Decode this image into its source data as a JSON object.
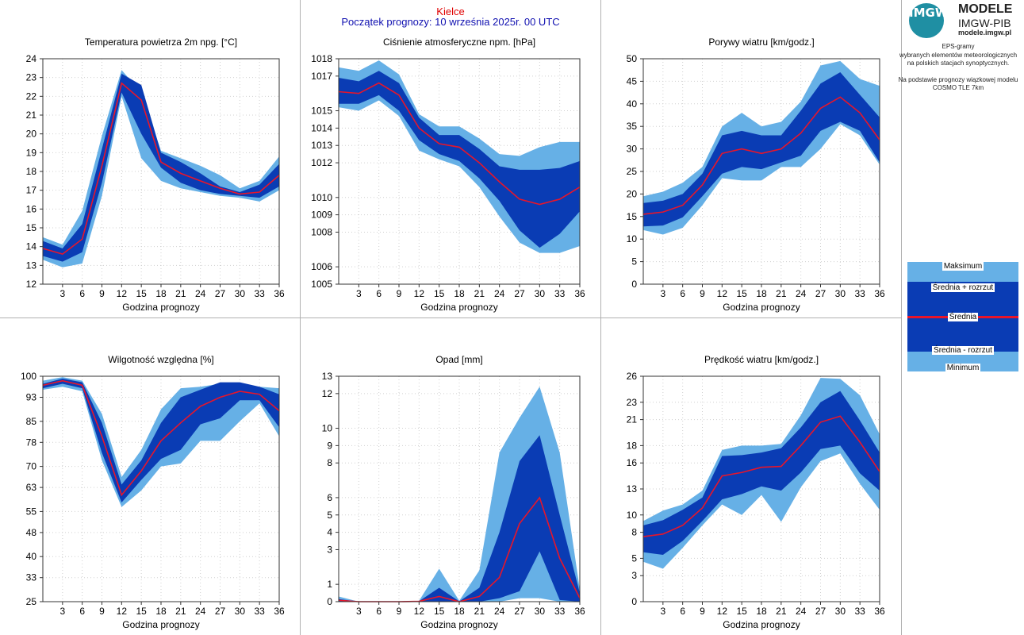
{
  "header": {
    "station": "Kielce",
    "forecast_start": "Początek prognozy: 10 września 2025r. 00 UTC"
  },
  "logo": {
    "emblem": "IMGW",
    "line1": "MODELE",
    "line2": "IMGW-PIB",
    "line3": "modele.imgw.pl"
  },
  "description": {
    "line1": "EPS-gramy",
    "line2": "wybranych elementów meteorologicznych",
    "line3": "na polskich stacjach  synoptycznych.",
    "line4": "Na podstawie prognozy wiązkowej modelu",
    "line5": "COSMO TLE 7km"
  },
  "legend": {
    "max": "Maksimum",
    "mean_plus": "Średnia + rozrzut",
    "mean": "Średnia",
    "mean_minus": "Średnia - rozrzut",
    "min": "Minimum"
  },
  "colors": {
    "outer_band": "#66b0e6",
    "inner_band": "#0a3cb4",
    "mean_line": "#e8152a",
    "grid": "#d0d0d0"
  },
  "chart_data": [
    {
      "type": "area",
      "title": "Temperatura powietrza 2m npg. [°C]",
      "xlabel": "Godzina prognozy",
      "x": [
        0,
        3,
        6,
        9,
        12,
        15,
        18,
        21,
        24,
        27,
        30,
        33,
        36
      ],
      "xticks": [
        "3",
        "6",
        "9",
        "12",
        "15",
        "18",
        "21",
        "24",
        "27",
        "30",
        "33",
        "36"
      ],
      "ylim": [
        12,
        24
      ],
      "yticks": [
        "12",
        "13",
        "14",
        "15",
        "16",
        "17",
        "18",
        "19",
        "20",
        "21",
        "22",
        "23",
        "24"
      ],
      "series": [
        {
          "name": "Maksimum",
          "values": [
            14.5,
            14.1,
            15.9,
            19.9,
            23.4,
            22.2,
            19.1,
            18.7,
            18.3,
            17.8,
            17.1,
            17.5,
            18.8
          ]
        },
        {
          "name": "Średnia + rozrzut",
          "values": [
            14.3,
            13.9,
            15.2,
            19.2,
            23.2,
            22.6,
            19.0,
            18.5,
            17.9,
            17.2,
            16.9,
            17.3,
            18.4
          ]
        },
        {
          "name": "Średnia",
          "values": [
            13.9,
            13.6,
            14.4,
            18.3,
            22.7,
            21.8,
            18.5,
            17.9,
            17.5,
            17.1,
            16.8,
            16.9,
            17.8
          ]
        },
        {
          "name": "Średnia - rozrzut",
          "values": [
            13.5,
            13.2,
            13.7,
            17.4,
            22.2,
            20.0,
            18.2,
            17.4,
            17.0,
            16.8,
            16.7,
            16.6,
            17.2
          ]
        },
        {
          "name": "Minimum",
          "values": [
            13.3,
            12.9,
            13.1,
            16.7,
            22.0,
            18.7,
            17.5,
            17.1,
            16.9,
            16.7,
            16.6,
            16.4,
            17.0
          ]
        }
      ]
    },
    {
      "type": "area",
      "title": "Ciśnienie atmosferyczne npm. [hPa]",
      "xlabel": "Godzina prognozy",
      "x": [
        0,
        3,
        6,
        9,
        12,
        15,
        18,
        21,
        24,
        27,
        30,
        33,
        36
      ],
      "xticks": [
        "3",
        "6",
        "9",
        "12",
        "15",
        "18",
        "21",
        "24",
        "27",
        "30",
        "33",
        "36"
      ],
      "ylim": [
        1005,
        1018
      ],
      "yticks": [
        "1005",
        "1006",
        "1008",
        "1009",
        "1010",
        "1012",
        "1013",
        "1014",
        "1015",
        "1017",
        "1018"
      ],
      "series": [
        {
          "name": "Maksimum",
          "values": [
            1017.5,
            1017.3,
            1017.9,
            1017.1,
            1014.8,
            1014.1,
            1014.1,
            1013.4,
            1012.5,
            1012.4,
            1012.9,
            1013.2,
            1013.2
          ]
        },
        {
          "name": "Średnia + rozrzut",
          "values": [
            1016.9,
            1016.7,
            1017.3,
            1016.6,
            1014.6,
            1013.6,
            1013.6,
            1012.8,
            1011.8,
            1011.6,
            1011.6,
            1011.7,
            1012.1
          ]
        },
        {
          "name": "Średnia",
          "values": [
            1016.1,
            1016.0,
            1016.6,
            1015.9,
            1014.0,
            1013.1,
            1012.9,
            1012.0,
            1010.9,
            1009.9,
            1009.6,
            1009.9,
            1010.6
          ]
        },
        {
          "name": "Średnia - rozrzut",
          "values": [
            1015.4,
            1015.4,
            1015.9,
            1015.0,
            1013.3,
            1012.5,
            1012.1,
            1011.1,
            1009.8,
            1008.1,
            1007.1,
            1007.9,
            1009.2
          ]
        },
        {
          "name": "Minimum",
          "values": [
            1015.2,
            1015.0,
            1015.6,
            1014.7,
            1012.7,
            1012.2,
            1011.8,
            1010.6,
            1008.9,
            1007.4,
            1006.8,
            1006.8,
            1007.2
          ]
        }
      ]
    },
    {
      "type": "area",
      "title": "Porywy wiatru [km/godz.]",
      "xlabel": "Godzina prognozy",
      "x": [
        0,
        3,
        6,
        9,
        12,
        15,
        18,
        21,
        24,
        27,
        30,
        33,
        36
      ],
      "xticks": [
        "3",
        "6",
        "9",
        "12",
        "15",
        "18",
        "21",
        "24",
        "27",
        "30",
        "33",
        "36"
      ],
      "ylim": [
        0,
        50
      ],
      "yticks": [
        "0",
        "5",
        "10",
        "15",
        "20",
        "25",
        "30",
        "35",
        "40",
        "45",
        "50"
      ],
      "series": [
        {
          "name": "Maksimum",
          "values": [
            19.5,
            20.5,
            22.5,
            26.0,
            35.0,
            38.0,
            35.0,
            36.0,
            40.5,
            48.5,
            49.5,
            45.5,
            44.0
          ]
        },
        {
          "name": "Średnia + rozrzut",
          "values": [
            18.0,
            18.5,
            20.0,
            24.5,
            33.0,
            34.0,
            33.0,
            33.0,
            38.5,
            44.5,
            47.0,
            42.0,
            37.0
          ]
        },
        {
          "name": "Średnia",
          "values": [
            15.5,
            16.0,
            17.5,
            22.0,
            29.0,
            30.0,
            29.0,
            30.0,
            33.5,
            39.0,
            41.5,
            38.0,
            32.0
          ]
        },
        {
          "name": "Średnia - rozrzut",
          "values": [
            12.8,
            13.0,
            14.8,
            19.5,
            24.5,
            26.0,
            25.5,
            27.0,
            28.5,
            34.0,
            36.0,
            34.0,
            27.0
          ]
        },
        {
          "name": "Minimum",
          "values": [
            12.0,
            11.0,
            12.5,
            17.5,
            23.5,
            23.0,
            23.0,
            26.0,
            26.0,
            30.0,
            35.5,
            33.0,
            26.5
          ]
        }
      ]
    },
    {
      "type": "area",
      "title": "Wilgotność względna [%]",
      "xlabel": "Godzina prognozy",
      "x": [
        0,
        3,
        6,
        9,
        12,
        15,
        18,
        21,
        24,
        27,
        30,
        33,
        36
      ],
      "xticks": [
        "3",
        "6",
        "9",
        "12",
        "15",
        "18",
        "21",
        "24",
        "27",
        "30",
        "33",
        "36"
      ],
      "ylim": [
        25,
        100
      ],
      "yticks": [
        "25",
        "33",
        "40",
        "48",
        "55",
        "63",
        "70",
        "78",
        "85",
        "93",
        "100"
      ],
      "series": [
        {
          "name": "Maksimum",
          "values": [
            98.5,
            99.7,
            98.5,
            87.5,
            66.5,
            75.5,
            89.0,
            96.0,
            96.5,
            97.5,
            96.5,
            96.5,
            96.0
          ]
        },
        {
          "name": "Średnia + rozrzut",
          "values": [
            97.5,
            99.2,
            98.0,
            84.5,
            64.0,
            72.0,
            84.5,
            93.0,
            95.5,
            98.0,
            98.0,
            96.5,
            94.0
          ]
        },
        {
          "name": "Średnia",
          "values": [
            97.0,
            98.5,
            97.0,
            80.0,
            60.5,
            68.5,
            78.5,
            84.5,
            90.0,
            93.0,
            95.0,
            94.0,
            88.5
          ]
        },
        {
          "name": "Średnia - rozrzut",
          "values": [
            96.0,
            97.5,
            96.0,
            74.5,
            58.0,
            65.5,
            72.5,
            75.5,
            84.0,
            86.0,
            92.0,
            92.0,
            83.0
          ]
        },
        {
          "name": "Minimum",
          "values": [
            95.5,
            96.5,
            95.0,
            72.0,
            56.5,
            62.0,
            70.0,
            71.0,
            78.5,
            78.5,
            85.0,
            91.0,
            80.0
          ]
        }
      ]
    },
    {
      "type": "area",
      "title": "Opad [mm]",
      "xlabel": "Godzina prognozy",
      "x": [
        0,
        3,
        6,
        9,
        12,
        15,
        18,
        21,
        24,
        27,
        30,
        33,
        36
      ],
      "xticks": [
        "3",
        "6",
        "9",
        "12",
        "15",
        "18",
        "21",
        "24",
        "27",
        "30",
        "33",
        "36"
      ],
      "ylim": [
        0,
        13
      ],
      "yticks": [
        "0",
        "1",
        "3",
        "4",
        "5",
        "6",
        "8",
        "9",
        "10",
        "12",
        "13"
      ],
      "series": [
        {
          "name": "Maksimum",
          "values": [
            0.3,
            0.0,
            0.0,
            0.0,
            0.05,
            1.9,
            0.05,
            1.8,
            8.6,
            10.6,
            12.4,
            8.6,
            0.7
          ]
        },
        {
          "name": "Średnia + rozrzut",
          "values": [
            0.15,
            0.0,
            0.0,
            0.0,
            0.03,
            0.8,
            0.02,
            0.8,
            4.0,
            8.1,
            9.6,
            5.0,
            0.5
          ]
        },
        {
          "name": "Średnia",
          "values": [
            0.08,
            0.0,
            0.0,
            0.0,
            0.02,
            0.3,
            0.0,
            0.3,
            1.4,
            4.5,
            6.0,
            2.5,
            0.2
          ]
        },
        {
          "name": "Średnia - rozrzut",
          "values": [
            0.02,
            0.0,
            0.0,
            0.0,
            0.0,
            0.0,
            0.0,
            0.0,
            0.2,
            0.6,
            2.9,
            0.1,
            0.0
          ]
        },
        {
          "name": "Minimum",
          "values": [
            0.0,
            0.0,
            0.0,
            0.0,
            0.0,
            0.0,
            0.0,
            0.0,
            0.0,
            0.2,
            0.2,
            0.0,
            0.0
          ]
        }
      ]
    },
    {
      "type": "area",
      "title": "Prędkość wiatru [km/godz.]",
      "xlabel": "Godzina prognozy",
      "x": [
        0,
        3,
        6,
        9,
        12,
        15,
        18,
        21,
        24,
        27,
        30,
        33,
        36
      ],
      "xticks": [
        "3",
        "6",
        "9",
        "12",
        "15",
        "18",
        "21",
        "24",
        "27",
        "30",
        "33",
        "36"
      ],
      "ylim": [
        0,
        26
      ],
      "yticks": [
        "0",
        "3",
        "5",
        "8",
        "10",
        "13",
        "16",
        "18",
        "21",
        "23",
        "26"
      ],
      "series": [
        {
          "name": "Maksimum",
          "values": [
            9.3,
            10.5,
            11.2,
            12.8,
            17.5,
            18.0,
            18.0,
            18.2,
            21.5,
            25.8,
            25.7,
            23.8,
            19.3
          ]
        },
        {
          "name": "Średnia + rozrzut",
          "values": [
            8.8,
            9.4,
            10.6,
            12.0,
            16.8,
            16.9,
            17.2,
            17.7,
            20.1,
            23.0,
            24.3,
            20.9,
            17.2
          ]
        },
        {
          "name": "Średnia",
          "values": [
            7.5,
            7.8,
            8.8,
            10.8,
            14.5,
            14.9,
            15.5,
            15.6,
            18.0,
            20.7,
            21.4,
            18.4,
            15.0
          ]
        },
        {
          "name": "Średnia - rozrzut",
          "values": [
            5.7,
            5.4,
            7.0,
            9.3,
            11.8,
            12.4,
            13.3,
            12.8,
            14.9,
            17.6,
            18.0,
            14.8,
            12.8
          ]
        },
        {
          "name": "Minimum",
          "values": [
            4.6,
            3.8,
            6.2,
            8.8,
            11.2,
            10.0,
            12.3,
            9.2,
            13.2,
            16.2,
            17.1,
            13.6,
            10.6
          ]
        }
      ]
    }
  ]
}
